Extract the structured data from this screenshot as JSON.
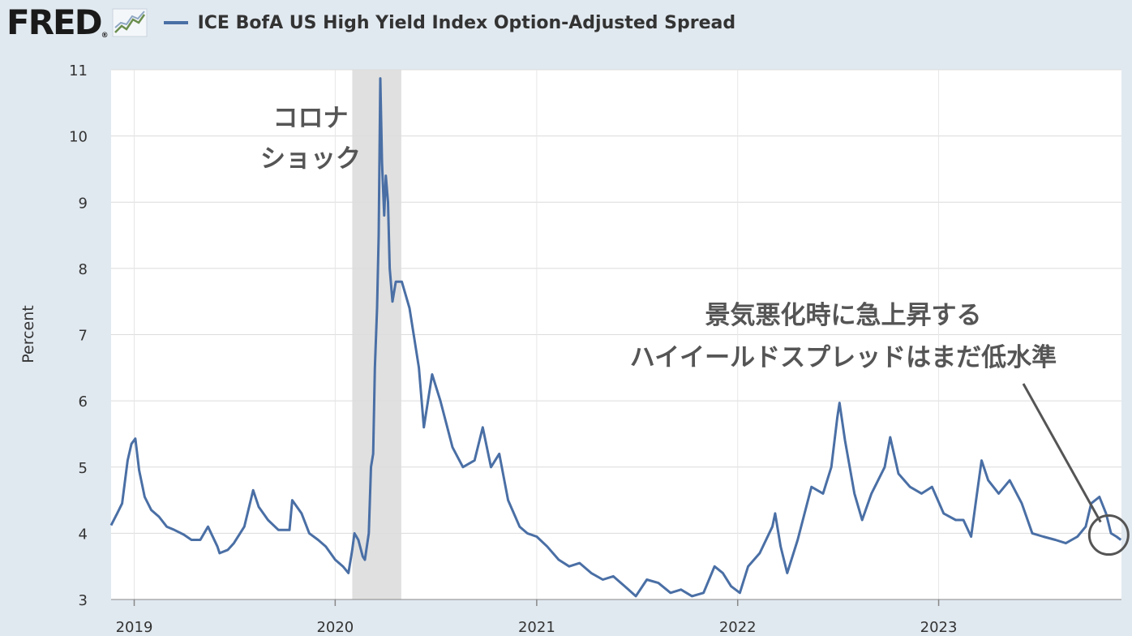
{
  "header": {
    "logo_text": "FRED",
    "logo_mark": "®",
    "logo_icon": "line-chart-icon",
    "series_title": "ICE BofA US High Yield Index Option-Adjusted Spread"
  },
  "colors": {
    "series": "#4a6fa5",
    "background": "#e1e9f0",
    "plot_area": "#ffffff",
    "recession": "#e0e0e0",
    "annotation": "#555555"
  },
  "chart_data": {
    "type": "line",
    "title": "ICE BofA US High Yield Index Option-Adjusted Spread",
    "ylabel": "Percent",
    "xlabel": "",
    "ylim": [
      3,
      11
    ],
    "xlim": [
      "2018-11-20",
      "2023-11-29"
    ],
    "grid": true,
    "y_ticks": [
      "3",
      "4",
      "5",
      "6",
      "7",
      "8",
      "9",
      "10",
      "11"
    ],
    "x_ticks": [
      {
        "date": "2019-01-01",
        "label": "2019"
      },
      {
        "date": "2020-01-01",
        "label": "2020"
      },
      {
        "date": "2021-01-01",
        "label": "2021"
      },
      {
        "date": "2022-01-01",
        "label": "2022"
      },
      {
        "date": "2023-01-01",
        "label": "2023"
      }
    ],
    "recession": {
      "start": "2020-02-01",
      "end": "2020-04-30"
    },
    "series": [
      {
        "points": [
          [
            "2018-11-20",
            4.12
          ],
          [
            "2018-12-01",
            4.3
          ],
          [
            "2018-12-10",
            4.45
          ],
          [
            "2018-12-20",
            5.1
          ],
          [
            "2018-12-27",
            5.35
          ],
          [
            "2019-01-03",
            5.43
          ],
          [
            "2019-01-10",
            4.95
          ],
          [
            "2019-01-20",
            4.55
          ],
          [
            "2019-02-01",
            4.35
          ],
          [
            "2019-02-15",
            4.25
          ],
          [
            "2019-03-01",
            4.1
          ],
          [
            "2019-03-15",
            4.05
          ],
          [
            "2019-04-01",
            3.98
          ],
          [
            "2019-04-15",
            3.9
          ],
          [
            "2019-05-01",
            3.9
          ],
          [
            "2019-05-15",
            4.1
          ],
          [
            "2019-06-01",
            3.8
          ],
          [
            "2019-06-05",
            3.7
          ],
          [
            "2019-06-20",
            3.75
          ],
          [
            "2019-07-01",
            3.85
          ],
          [
            "2019-07-20",
            4.1
          ],
          [
            "2019-08-05",
            4.65
          ],
          [
            "2019-08-15",
            4.4
          ],
          [
            "2019-09-01",
            4.2
          ],
          [
            "2019-09-20",
            4.05
          ],
          [
            "2019-10-10",
            4.05
          ],
          [
            "2019-10-15",
            4.5
          ],
          [
            "2019-11-01",
            4.3
          ],
          [
            "2019-11-15",
            4.0
          ],
          [
            "2019-12-01",
            3.9
          ],
          [
            "2019-12-15",
            3.8
          ],
          [
            "2020-01-01",
            3.6
          ],
          [
            "2020-01-15",
            3.5
          ],
          [
            "2020-01-25",
            3.4
          ],
          [
            "2020-02-01",
            3.75
          ],
          [
            "2020-02-05",
            4.0
          ],
          [
            "2020-02-12",
            3.9
          ],
          [
            "2020-02-20",
            3.65
          ],
          [
            "2020-02-24",
            3.6
          ],
          [
            "2020-03-02",
            4.0
          ],
          [
            "2020-03-06",
            5.0
          ],
          [
            "2020-03-10",
            5.2
          ],
          [
            "2020-03-13",
            6.5
          ],
          [
            "2020-03-17",
            7.4
          ],
          [
            "2020-03-20",
            8.5
          ],
          [
            "2020-03-23",
            10.87
          ],
          [
            "2020-03-26",
            9.6
          ],
          [
            "2020-03-30",
            8.8
          ],
          [
            "2020-04-02",
            9.4
          ],
          [
            "2020-04-06",
            9.0
          ],
          [
            "2020-04-09",
            8.0
          ],
          [
            "2020-04-14",
            7.5
          ],
          [
            "2020-04-20",
            7.8
          ],
          [
            "2020-05-01",
            7.8
          ],
          [
            "2020-05-15",
            7.4
          ],
          [
            "2020-06-01",
            6.5
          ],
          [
            "2020-06-10",
            5.6
          ],
          [
            "2020-06-25",
            6.4
          ],
          [
            "2020-07-10",
            6.0
          ],
          [
            "2020-08-01",
            5.3
          ],
          [
            "2020-08-20",
            5.0
          ],
          [
            "2020-09-10",
            5.1
          ],
          [
            "2020-09-25",
            5.6
          ],
          [
            "2020-10-10",
            5.0
          ],
          [
            "2020-10-25",
            5.2
          ],
          [
            "2020-11-10",
            4.5
          ],
          [
            "2020-12-01",
            4.1
          ],
          [
            "2020-12-15",
            4.0
          ],
          [
            "2021-01-01",
            3.95
          ],
          [
            "2021-01-20",
            3.8
          ],
          [
            "2021-02-10",
            3.6
          ],
          [
            "2021-03-01",
            3.5
          ],
          [
            "2021-03-20",
            3.55
          ],
          [
            "2021-04-10",
            3.4
          ],
          [
            "2021-05-01",
            3.3
          ],
          [
            "2021-05-20",
            3.35
          ],
          [
            "2021-06-10",
            3.2
          ],
          [
            "2021-06-30",
            3.05
          ],
          [
            "2021-07-20",
            3.3
          ],
          [
            "2021-08-10",
            3.25
          ],
          [
            "2021-09-01",
            3.1
          ],
          [
            "2021-09-20",
            3.15
          ],
          [
            "2021-10-10",
            3.05
          ],
          [
            "2021-10-31",
            3.1
          ],
          [
            "2021-11-20",
            3.5
          ],
          [
            "2021-12-05",
            3.4
          ],
          [
            "2021-12-20",
            3.2
          ],
          [
            "2022-01-05",
            3.1
          ],
          [
            "2022-01-20",
            3.5
          ],
          [
            "2022-02-10",
            3.7
          ],
          [
            "2022-03-05",
            4.1
          ],
          [
            "2022-03-10",
            4.3
          ],
          [
            "2022-03-20",
            3.8
          ],
          [
            "2022-04-01",
            3.4
          ],
          [
            "2022-04-20",
            3.9
          ],
          [
            "2022-05-15",
            4.7
          ],
          [
            "2022-06-05",
            4.6
          ],
          [
            "2022-06-20",
            5.0
          ],
          [
            "2022-07-01",
            5.75
          ],
          [
            "2022-07-05",
            5.97
          ],
          [
            "2022-07-15",
            5.4
          ],
          [
            "2022-08-01",
            4.6
          ],
          [
            "2022-08-15",
            4.2
          ],
          [
            "2022-09-01",
            4.6
          ],
          [
            "2022-09-25",
            5.0
          ],
          [
            "2022-10-05",
            5.45
          ],
          [
            "2022-10-20",
            4.9
          ],
          [
            "2022-11-10",
            4.7
          ],
          [
            "2022-12-01",
            4.6
          ],
          [
            "2022-12-20",
            4.7
          ],
          [
            "2023-01-10",
            4.3
          ],
          [
            "2023-02-01",
            4.2
          ],
          [
            "2023-02-15",
            4.2
          ],
          [
            "2023-03-01",
            3.95
          ],
          [
            "2023-03-10",
            4.5
          ],
          [
            "2023-03-20",
            5.1
          ],
          [
            "2023-04-01",
            4.8
          ],
          [
            "2023-04-20",
            4.6
          ],
          [
            "2023-05-10",
            4.8
          ],
          [
            "2023-06-01",
            4.45
          ],
          [
            "2023-06-20",
            4.0
          ],
          [
            "2023-07-10",
            3.95
          ],
          [
            "2023-08-01",
            3.9
          ],
          [
            "2023-08-20",
            3.85
          ],
          [
            "2023-09-10",
            3.95
          ],
          [
            "2023-09-25",
            4.1
          ],
          [
            "2023-10-05",
            4.45
          ],
          [
            "2023-10-20",
            4.55
          ],
          [
            "2023-11-01",
            4.3
          ],
          [
            "2023-11-10",
            4.0
          ],
          [
            "2023-11-20",
            3.95
          ],
          [
            "2023-11-28",
            3.9
          ]
        ]
      }
    ],
    "annotations": [
      {
        "id": "covid",
        "lines": [
          "コロナ",
          "ショック"
        ]
      },
      {
        "id": "current",
        "lines": [
          "景気悪化時に急上昇する",
          "ハイイールドスプレッドはまだ低水準"
        ]
      }
    ]
  }
}
